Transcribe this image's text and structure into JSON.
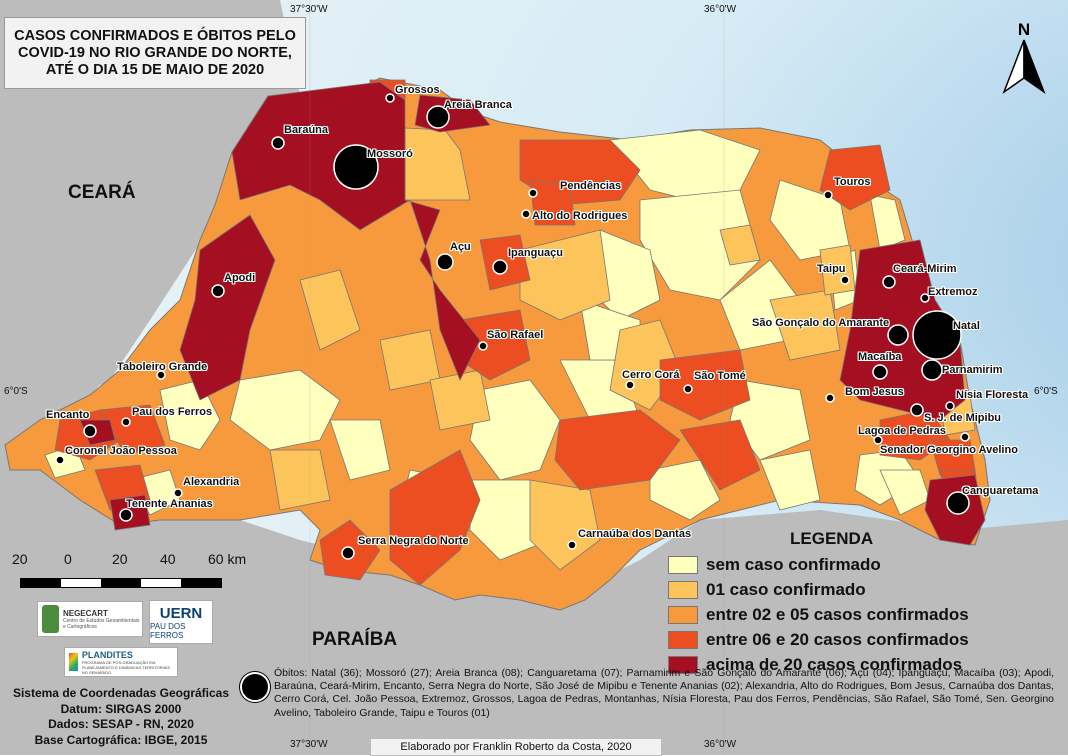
{
  "title": [
    "CASOS CONFIRMADOS E ÓBITOS PELO",
    "COVID-19 NO RIO GRANDE DO NORTE,",
    "ATÉ O DIA 15 DE MAIO DE 2020"
  ],
  "states": {
    "ceara": "CEARÁ",
    "paraiba": "PARAÍBA"
  },
  "coordinates": {
    "top_left": "37°30'W",
    "top_right": "36°0'W",
    "bottom_left": "37°30'W",
    "bottom_right": "36°0'W",
    "left_lat": "6°0'S",
    "right_lat": "6°0'S"
  },
  "north_label": "N",
  "cities": [
    {
      "name": "Grossos"
    },
    {
      "name": "Areia Branca"
    },
    {
      "name": "Baraúna"
    },
    {
      "name": "Mossoró"
    },
    {
      "name": "Pendências"
    },
    {
      "name": "Alto do Rodrigues"
    },
    {
      "name": "Touros"
    },
    {
      "name": "Açu"
    },
    {
      "name": "Ipanguaçu"
    },
    {
      "name": "Apodi"
    },
    {
      "name": "Taipu"
    },
    {
      "name": "Ceará-Mirim"
    },
    {
      "name": "Extremoz"
    },
    {
      "name": "São Gonçalo do Amarante"
    },
    {
      "name": "Natal"
    },
    {
      "name": "São Rafael"
    },
    {
      "name": "Macaíba"
    },
    {
      "name": "Parnamirim"
    },
    {
      "name": "Taboleiro Grande"
    },
    {
      "name": "Cerro Corá"
    },
    {
      "name": "São Tomé"
    },
    {
      "name": "Bom Jesus"
    },
    {
      "name": "Nísia Floresta"
    },
    {
      "name": "Encanto"
    },
    {
      "name": "Pau dos Ferros"
    },
    {
      "name": "S. J. de Mipibu"
    },
    {
      "name": "Lagoa de Pedras"
    },
    {
      "name": "Coronel João Pessoa"
    },
    {
      "name": "Senador Georgino Avelino"
    },
    {
      "name": "Alexandria"
    },
    {
      "name": "Canguaretama"
    },
    {
      "name": "Tenente Ananias"
    },
    {
      "name": "Carnaúba dos Dantas"
    },
    {
      "name": "Serra Negra do Norte"
    }
  ],
  "legend": {
    "title": "LEGENDA",
    "items": [
      {
        "label": "sem caso confirmado",
        "color": "#ffffbe"
      },
      {
        "label": "01 caso confirmado",
        "color": "#fdc45c"
      },
      {
        "label": "entre 02 e 05 casos confirmados",
        "color": "#f79a3d"
      },
      {
        "label": "entre 06 e 20 casos confirmados",
        "color": "#ec4d21"
      },
      {
        "label": "acima de 20 casos confirmados",
        "color": "#a50f22"
      }
    ]
  },
  "scale": {
    "labels": [
      "20",
      "0",
      "20",
      "40",
      "60 km"
    ]
  },
  "logos": {
    "negecart": "NEGECART",
    "negecart_sub": "Centro de Estudos Geoambientais e Cartográficos",
    "uern": "UERN",
    "uern_sub": "PAU DOS FERROS",
    "plandites": "PLANDITES",
    "plandites_sub": "PROGRAMA DE PÓS-GRADUAÇÃO EM PLANEJAMENTO E DINÂMICAS TERRITORIAIS NO SEMIÁRIDO"
  },
  "info": [
    "Sistema de Coordenadas Geográficas",
    "Datum: SIRGAS 2000",
    "Dados: SESAP - RN, 2020",
    "Base Cartográfica: IBGE, 2015"
  ],
  "obitos_text": "Óbitos: Natal (36); Mossoró (27); Areia Branca (08); Canguaretama (07); Parnamirim e São Gonçalo do Amarante (06); Açu (04); Ipanguaçu, Macaíba (03); Apodi, Baraúna, Ceará-Mirim, Encanto, Serra Negra do Norte, São José de Mipibu e Tenente Ananias (02); Alexandria, Alto do Rodrigues, Bom Jesus, Carnaúba dos Dantas, Cerro Corá, Cel. João Pessoa, Extremoz, Grossos, Lagoa de Pedras, Montanhas, Nísia Floresta, Pau dos Ferros, Pendências, São Rafael, São Tomé, Sen. Georgino Avelino, Taboleiro Grande, Taipu e Touros (01)",
  "credit": "Elaborado por Franklin Roberto da Costa, 2020"
}
